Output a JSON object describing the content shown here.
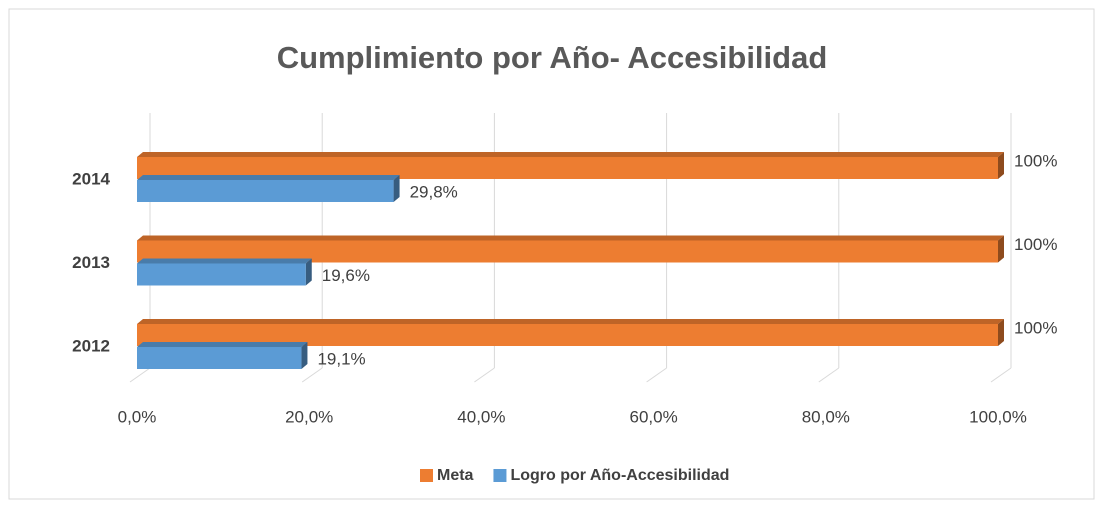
{
  "chart_data": {
    "type": "bar3d",
    "orientation": "horizontal",
    "title": "Cumplimiento por Año- Accesibilidad",
    "categories": [
      "2012",
      "2013",
      "2014"
    ],
    "series": [
      {
        "name": "Meta",
        "color": "#ED7D31",
        "values": [
          100,
          100,
          100
        ],
        "value_labels": [
          "100%",
          "100%",
          "100%"
        ]
      },
      {
        "name": "Logro por Año-Accesibilidad",
        "color": "#5B9BD5",
        "values": [
          19.1,
          19.6,
          29.8
        ],
        "value_labels": [
          "19,1%",
          "19,6%",
          "29,8%"
        ]
      }
    ],
    "xlim": [
      0,
      100
    ],
    "xticks": [
      {
        "value": 0,
        "label": "0,0%"
      },
      {
        "value": 20,
        "label": "20,0%"
      },
      {
        "value": 40,
        "label": "40,0%"
      },
      {
        "value": 60,
        "label": "60,0%"
      },
      {
        "value": 80,
        "label": "80,0%"
      },
      {
        "value": 100,
        "label": "100,0%"
      }
    ],
    "grid": true,
    "legend": "bottom"
  }
}
